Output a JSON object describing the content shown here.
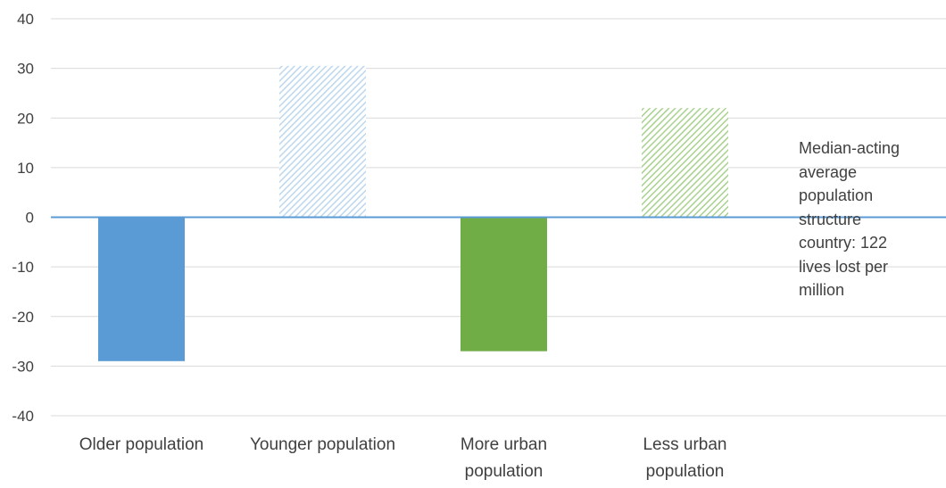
{
  "chart_data": {
    "type": "bar",
    "categories": [
      [
        "Older population"
      ],
      [
        "Younger population"
      ],
      [
        "More urban",
        "population"
      ],
      [
        "Less urban",
        "population"
      ]
    ],
    "values": [
      -29,
      30.5,
      -27,
      22
    ],
    "bar_colors": [
      "#5b9bd5",
      "#bdd7ee",
      "#70ad47",
      "#a9d18e"
    ],
    "bar_patterns": [
      "solid",
      "hatched",
      "solid",
      "hatched"
    ],
    "ylim": [
      -40,
      40
    ],
    "yticks": [
      40,
      30,
      20,
      10,
      0,
      -10,
      -20,
      -30,
      -40
    ],
    "grid": true,
    "zero_line_color": "#5b9bd5",
    "annotation": [
      "Median-acting",
      "average",
      "population",
      "structure",
      "country: 122",
      "lives lost per",
      "million"
    ]
  }
}
